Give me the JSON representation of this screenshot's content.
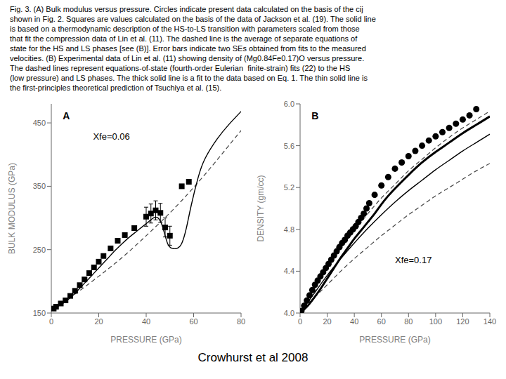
{
  "title": "Crowhurst et al 2008",
  "caption": [
    "Fig. 3. (A) Bulk modulus versus pressure. Circles indicate present data calculated on the basis of the cij",
    "shown in Fig. 2. Squares are values calculated on the basis of the data of Jackson et al. (19). The solid line",
    "is based on a thermodynamic description of the HS-to-LS transition with parameters scaled from those",
    "that fit the compression data of Lin et al. (11). The dashed line is the average of separate equations of",
    "state for the HS and LS phases [see (B)]. Error bars indicate two SEs obtained from fits to the measured",
    "velocities. (B) Experimental data of Lin et al. (11) showing density of (Mg0.84Fe0.17)O versus pressure.",
    "The dashed lines represent equations-of-state (fourth-order Eulerian  finite-strain) fits (22) to the HS",
    "(low pressure) and LS phases. The thick solid line is a fit to the data based on Eq. 1. The thin solid line is",
    "the first-principles theoretical prediction of Tsuchiya et al. (15)."
  ],
  "chart_data": [
    {
      "type": "line",
      "title": "A",
      "xlabel": "PRESSURE (GPa)",
      "ylabel": "BULK MODULUS (GPa)",
      "annotations": [
        "Xfe=0.06"
      ],
      "xlim": [
        0,
        80
      ],
      "ylim": [
        150,
        480
      ],
      "xticks": [
        0,
        20,
        40,
        60,
        80
      ],
      "yticks": [
        150,
        250,
        350,
        450
      ],
      "grid": false,
      "series": [
        {
          "type": "line",
          "line_style": "dashed",
          "color": "#444444",
          "x": [
            0,
            10,
            20,
            30,
            40,
            50,
            60,
            70,
            80
          ],
          "values": [
            155,
            180,
            208,
            238,
            272,
            308,
            348,
            392,
            438
          ]
        },
        {
          "type": "line",
          "line_style": "solid",
          "color": "#000000",
          "x": [
            0,
            2,
            4,
            6,
            8,
            10,
            12,
            15,
            18,
            21,
            24,
            27,
            30,
            33,
            36,
            39,
            41,
            43,
            45,
            47,
            49,
            51,
            53,
            55,
            57,
            59,
            62,
            65,
            70,
            75,
            80
          ],
          "values": [
            155,
            159,
            163,
            168,
            174,
            181,
            189,
            201,
            213,
            225,
            237,
            249,
            260,
            270,
            279,
            288,
            294,
            300,
            300,
            285,
            260,
            252,
            252,
            260,
            285,
            320,
            365,
            395,
            425,
            448,
            468
          ]
        },
        {
          "type": "scatter",
          "marker": "square",
          "color": "#000000",
          "x": [
            1,
            2,
            4,
            6,
            8,
            10,
            12,
            14,
            16,
            18,
            20,
            22,
            25,
            28,
            31,
            35,
            40,
            42,
            44,
            46,
            48,
            50,
            55,
            58
          ],
          "values": [
            157,
            160,
            165,
            170,
            177,
            185,
            194,
            203,
            213,
            222,
            231,
            240,
            252,
            264,
            273,
            284,
            302,
            307,
            312,
            308,
            285,
            272,
            350,
            357
          ],
          "yerr": [
            0,
            0,
            0,
            0,
            0,
            0,
            0,
            0,
            0,
            0,
            0,
            0,
            0,
            0,
            0,
            0,
            15,
            15,
            15,
            15,
            15,
            15,
            0,
            0
          ]
        }
      ]
    },
    {
      "type": "line",
      "title": "B",
      "xlabel": "PRESSURE (GPa)",
      "ylabel": "DENSITY (gm/cc)",
      "annotations": [
        "Xfe=0.17"
      ],
      "xlim": [
        0,
        140
      ],
      "ylim": [
        4,
        6
      ],
      "xticks": [
        0,
        20,
        40,
        60,
        80,
        100,
        120,
        140
      ],
      "yticks": [
        {
          "value": 4,
          "label": "4.0"
        },
        4.4,
        4.8,
        5.2,
        5.6,
        {
          "value": 6,
          "label": "6.0"
        }
      ],
      "grid": false,
      "series": [
        {
          "type": "line",
          "line_style": "dashed",
          "color": "#444444",
          "x": [
            0,
            10,
            20,
            30,
            40,
            50,
            60,
            70,
            80,
            90,
            100,
            110,
            120,
            130,
            140
          ],
          "values": [
            4.0,
            4.14,
            4.27,
            4.4,
            4.52,
            4.63,
            4.74,
            4.84,
            4.94,
            5.03,
            5.12,
            5.2,
            5.28,
            5.36,
            5.43
          ]
        },
        {
          "type": "line",
          "line_style": "dashed",
          "color": "#444444",
          "x": [
            0,
            10,
            20,
            30,
            40,
            50,
            60,
            70,
            80,
            90,
            100,
            110,
            120,
            130,
            140
          ],
          "values": [
            4.0,
            4.22,
            4.43,
            4.62,
            4.79,
            4.95,
            5.1,
            5.23,
            5.36,
            5.47,
            5.58,
            5.68,
            5.77,
            5.85,
            5.93
          ]
        },
        {
          "type": "line",
          "line_style": "solid",
          "color": "#000000",
          "x": [
            0,
            10,
            20,
            30,
            40,
            50,
            60,
            70,
            80,
            90,
            100,
            110,
            120,
            130,
            140
          ],
          "values": [
            4.0,
            4.18,
            4.36,
            4.52,
            4.67,
            4.81,
            4.94,
            5.06,
            5.17,
            5.27,
            5.37,
            5.46,
            5.55,
            5.63,
            5.71
          ]
        },
        {
          "type": "line",
          "line_style": "thick",
          "color": "#000000",
          "x": [
            0,
            5,
            10,
            15,
            20,
            25,
            30,
            35,
            40,
            45,
            50,
            55,
            60,
            65,
            70,
            80,
            90,
            100,
            110,
            120,
            130,
            140
          ],
          "values": [
            4.0,
            4.06,
            4.14,
            4.23,
            4.33,
            4.43,
            4.53,
            4.62,
            4.71,
            4.79,
            4.87,
            4.95,
            5.04,
            5.12,
            5.19,
            5.32,
            5.44,
            5.54,
            5.63,
            5.72,
            5.8,
            5.88
          ]
        },
        {
          "type": "scatter",
          "marker": "circle",
          "color": "#000000",
          "x": [
            1,
            3,
            5,
            7,
            9,
            11,
            13,
            15,
            17,
            19,
            21,
            23,
            25,
            27,
            29,
            31,
            33,
            35,
            37,
            39,
            41,
            43,
            45,
            47,
            49,
            51,
            55,
            60,
            65,
            70,
            75,
            80,
            85,
            90,
            95,
            100,
            105,
            110,
            115,
            120,
            125,
            130
          ],
          "values": [
            4.02,
            4.07,
            4.12,
            4.17,
            4.22,
            4.27,
            4.31,
            4.35,
            4.39,
            4.43,
            4.47,
            4.51,
            4.55,
            4.59,
            4.63,
            4.67,
            4.7,
            4.74,
            4.77,
            4.8,
            4.83,
            4.87,
            4.91,
            4.95,
            5.0,
            5.05,
            5.13,
            5.22,
            5.3,
            5.38,
            5.44,
            5.5,
            5.55,
            5.6,
            5.65,
            5.69,
            5.73,
            5.77,
            5.81,
            5.85,
            5.89,
            5.95
          ]
        }
      ]
    }
  ]
}
